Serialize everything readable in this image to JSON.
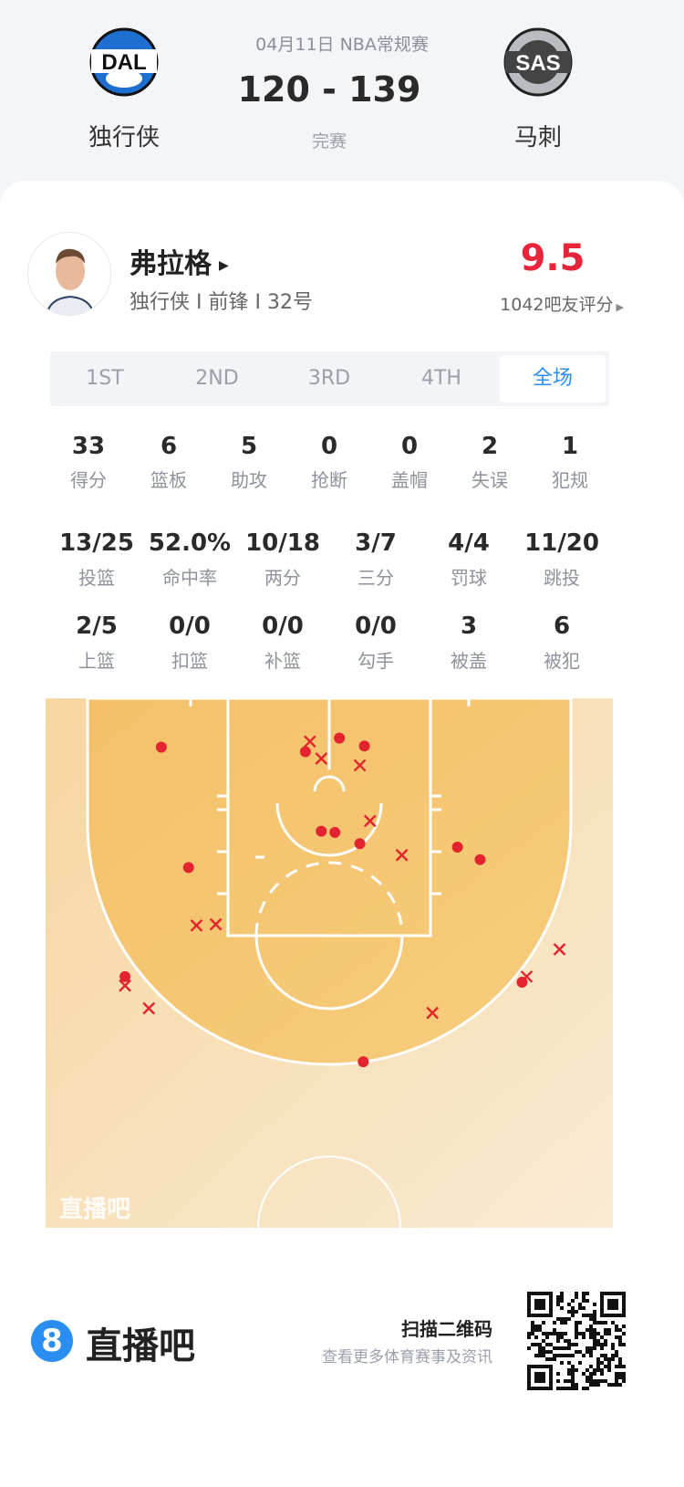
{
  "match": {
    "date_league": "04月11日 NBA常规赛",
    "score": "120 - 139",
    "status": "完赛",
    "home": {
      "abbr": "DAL",
      "name": "独行侠",
      "color": "#1f6fd1"
    },
    "away": {
      "abbr": "SAS",
      "name": "马刺",
      "color": "#9aa0a6"
    }
  },
  "player": {
    "name": "弗拉格",
    "info": "独行侠 I 前锋 I 32号",
    "rating": "9.5",
    "rating_caption": "1042吧友评分",
    "rating_color": "#e8243a"
  },
  "tabs": [
    {
      "label": "1ST"
    },
    {
      "label": "2ND"
    },
    {
      "label": "3RD"
    },
    {
      "label": "4TH"
    },
    {
      "label": "全场",
      "active": true
    }
  ],
  "accent": "#2a8ef0",
  "stats_row1": [
    {
      "value": "33",
      "label": "得分"
    },
    {
      "value": "6",
      "label": "篮板"
    },
    {
      "value": "5",
      "label": "助攻"
    },
    {
      "value": "0",
      "label": "抢断"
    },
    {
      "value": "0",
      "label": "盖帽"
    },
    {
      "value": "2",
      "label": "失误"
    },
    {
      "value": "1",
      "label": "犯规"
    }
  ],
  "stats_row2": [
    {
      "value": "13/25",
      "label": "投篮"
    },
    {
      "value": "52.0%",
      "label": "命中率"
    },
    {
      "value": "10/18",
      "label": "两分"
    },
    {
      "value": "3/7",
      "label": "三分"
    },
    {
      "value": "4/4",
      "label": "罚球"
    },
    {
      "value": "11/20",
      "label": "跳投"
    }
  ],
  "stats_row3": [
    {
      "value": "2/5",
      "label": "上篮"
    },
    {
      "value": "0/0",
      "label": "扣篮"
    },
    {
      "value": "0/0",
      "label": "补篮"
    },
    {
      "value": "0/0",
      "label": "勾手"
    },
    {
      "value": "3",
      "label": "被盖"
    },
    {
      "value": "6",
      "label": "被犯"
    }
  ],
  "shot_chart": {
    "watermark": "直播吧",
    "units": "feet from basket",
    "made_color": "#e3242f",
    "made": [
      [
        -14.8,
        -0.6
      ],
      [
        0.9,
        -1.4
      ],
      [
        3.1,
        -0.7
      ],
      [
        -2.1,
        -0.2
      ],
      [
        -0.7,
        6.8
      ],
      [
        0.5,
        6.9
      ],
      [
        2.7,
        7.9
      ],
      [
        -12.4,
        10.0
      ],
      [
        11.3,
        8.2
      ],
      [
        13.3,
        9.3
      ],
      [
        -18.0,
        19.6
      ],
      [
        17.0,
        20.1
      ],
      [
        3.0,
        27.1
      ]
    ],
    "missed": [
      [
        -1.7,
        -1.1
      ],
      [
        -0.7,
        0.4
      ],
      [
        2.7,
        1.0
      ],
      [
        3.6,
        5.9
      ],
      [
        6.4,
        8.9
      ],
      [
        -11.7,
        15.1
      ],
      [
        -10.0,
        15.0
      ],
      [
        -18.0,
        20.4
      ],
      [
        -15.9,
        22.4
      ],
      [
        20.3,
        17.2
      ],
      [
        17.4,
        19.6
      ],
      [
        9.1,
        22.8
      ]
    ]
  },
  "footer": {
    "brand": "直播吧",
    "brand_badge": "8",
    "scan_title": "扫描二维码",
    "scan_sub": "查看更多体育赛事及资讯"
  }
}
